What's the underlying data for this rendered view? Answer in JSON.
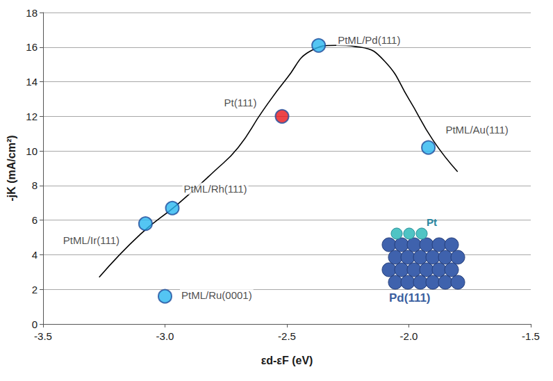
{
  "chart_data": {
    "type": "scatter",
    "x_label": "εd-εF (eV)",
    "y_label": "-jK (mA/cm²)",
    "xlim": [
      -3.5,
      -1.5
    ],
    "xticks": [
      -3.5,
      {
        "value": -3,
        "label": "-3.0"
      },
      -2.5,
      {
        "value": -2,
        "label": "-2.0"
      },
      -1.5
    ],
    "ylim": [
      0,
      18
    ],
    "yticks": [
      0,
      2,
      4,
      6,
      8,
      10,
      12,
      14,
      16,
      18
    ],
    "grid": true,
    "series": [
      {
        "type": "line",
        "line_style": "solid",
        "color": "#000000",
        "x": [
          -3.27,
          -3.1,
          -2.95,
          -2.8,
          -2.7,
          -2.6,
          -2.5,
          -2.4,
          -2.3,
          -2.2,
          -2.1,
          -2.0,
          -1.9,
          -1.8
        ],
        "values": [
          2.7,
          5.2,
          6.9,
          8.8,
          10.2,
          12.3,
          14.2,
          15.8,
          16.1,
          16.0,
          15.2,
          13.0,
          10.6,
          8.8
        ]
      },
      {
        "type": "scatter",
        "marker": "circle",
        "x": [
          -3.08,
          -2.97,
          -3.0,
          -2.52,
          -2.37,
          -1.92
        ],
        "values": [
          5.8,
          6.7,
          1.6,
          12.0,
          16.1,
          10.2
        ],
        "colors": [
          "#29b6f0",
          "#29b6f0",
          "#29b6f0",
          "#e8171b",
          "#29b6f0",
          "#29b6f0"
        ],
        "labels": [
          "PtML/Ir(111)",
          "PtML/Rh(111)",
          "PtML/Ru(0001)",
          "Pt(111)",
          "PtML/Pd(111)",
          "PtML/Au(111)"
        ]
      }
    ],
    "annotations": [
      {
        "text": "Pt"
      },
      {
        "text": "Pd(111)"
      }
    ]
  }
}
